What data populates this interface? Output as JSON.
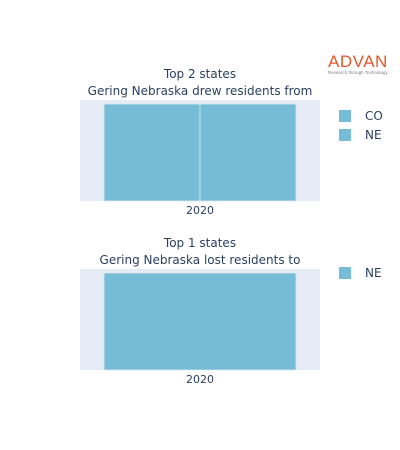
{
  "logo": {
    "name": "ADVAN",
    "tagline": "Research through Technology",
    "color": "#e2582b"
  },
  "theme": {
    "plot_bg": "#e5ecf6",
    "bar_color": "#75bdd6",
    "bar_edge": "#dbe6ee",
    "text_color": "#2a3f5f"
  },
  "chart_data": [
    {
      "type": "bar",
      "barmode": "stack",
      "title_lines": [
        "Top 2 states",
        "Gering Nebraska drew residents from"
      ],
      "categories": [
        "2020"
      ],
      "series": [
        {
          "name": "CO",
          "values": [
            1
          ]
        },
        {
          "name": "NE",
          "values": [
            1
          ]
        }
      ],
      "legend": "right",
      "grid": false
    },
    {
      "type": "bar",
      "barmode": "stack",
      "title_lines": [
        "Top 1 states",
        "Gering Nebraska lost residents to"
      ],
      "categories": [
        "2020"
      ],
      "series": [
        {
          "name": "NE",
          "values": [
            1
          ]
        }
      ],
      "legend": "right",
      "grid": false
    }
  ]
}
